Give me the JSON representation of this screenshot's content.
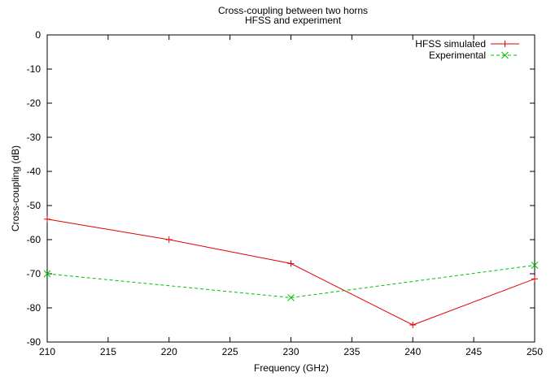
{
  "chart_data": {
    "type": "line",
    "title": "Cross-coupling between two horns",
    "subtitle": "HFSS and experiment",
    "xlabel": "Frequency (GHz)",
    "ylabel": "Cross-coupling (dB)",
    "xlim": [
      210,
      250
    ],
    "ylim": [
      -90,
      0
    ],
    "x_ticks": [
      210,
      215,
      220,
      225,
      230,
      235,
      240,
      245,
      250
    ],
    "y_ticks": [
      0,
      -10,
      -20,
      -30,
      -40,
      -50,
      -60,
      -70,
      -80,
      -90
    ],
    "grid": false,
    "legend_position": "top-right",
    "series": [
      {
        "name": "HFSS simulated",
        "color": "#e00000",
        "line_style": "solid",
        "marker": "plus",
        "x": [
          210,
          220,
          230,
          240,
          250
        ],
        "y": [
          -54,
          -60,
          -67,
          -85,
          -71.5
        ]
      },
      {
        "name": "Experimental",
        "color": "#00c000",
        "line_style": "dashed",
        "marker": "cross",
        "x": [
          210,
          230,
          250
        ],
        "y": [
          -70,
          -77,
          -67.5
        ]
      }
    ]
  }
}
